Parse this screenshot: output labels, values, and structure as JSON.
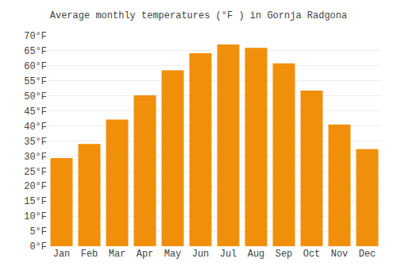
{
  "chart_data": {
    "type": "bar",
    "title": "Average monthly temperatures (°F ) in Gornja Radgona",
    "categories": [
      "Jan",
      "Feb",
      "Mar",
      "Apr",
      "May",
      "Jun",
      "Jul",
      "Aug",
      "Sep",
      "Oct",
      "Nov",
      "Dec"
    ],
    "values": [
      29.3,
      34.0,
      42.1,
      50.2,
      58.5,
      64.2,
      67.1,
      66.0,
      60.8,
      51.8,
      40.5,
      32.3
    ],
    "color": "#F0900A",
    "ylim": [
      0,
      70
    ],
    "yticks": [
      {
        "value": 0,
        "label": "0°F"
      },
      {
        "value": 5,
        "label": "5°F"
      },
      {
        "value": 10,
        "label": "10°F"
      },
      {
        "value": 15,
        "label": "15°F"
      },
      {
        "value": 20,
        "label": "20°F"
      },
      {
        "value": 25,
        "label": "25°F"
      },
      {
        "value": 30,
        "label": "30°F"
      },
      {
        "value": 35,
        "label": "35°F"
      },
      {
        "value": 40,
        "label": "40°F"
      },
      {
        "value": 45,
        "label": "45°F"
      },
      {
        "value": 50,
        "label": "50°F"
      },
      {
        "value": 55,
        "label": "55°F"
      },
      {
        "value": 60,
        "label": "60°F"
      },
      {
        "value": 65,
        "label": "65°F"
      },
      {
        "value": 70,
        "label": "70°F"
      }
    ],
    "grid": true
  }
}
